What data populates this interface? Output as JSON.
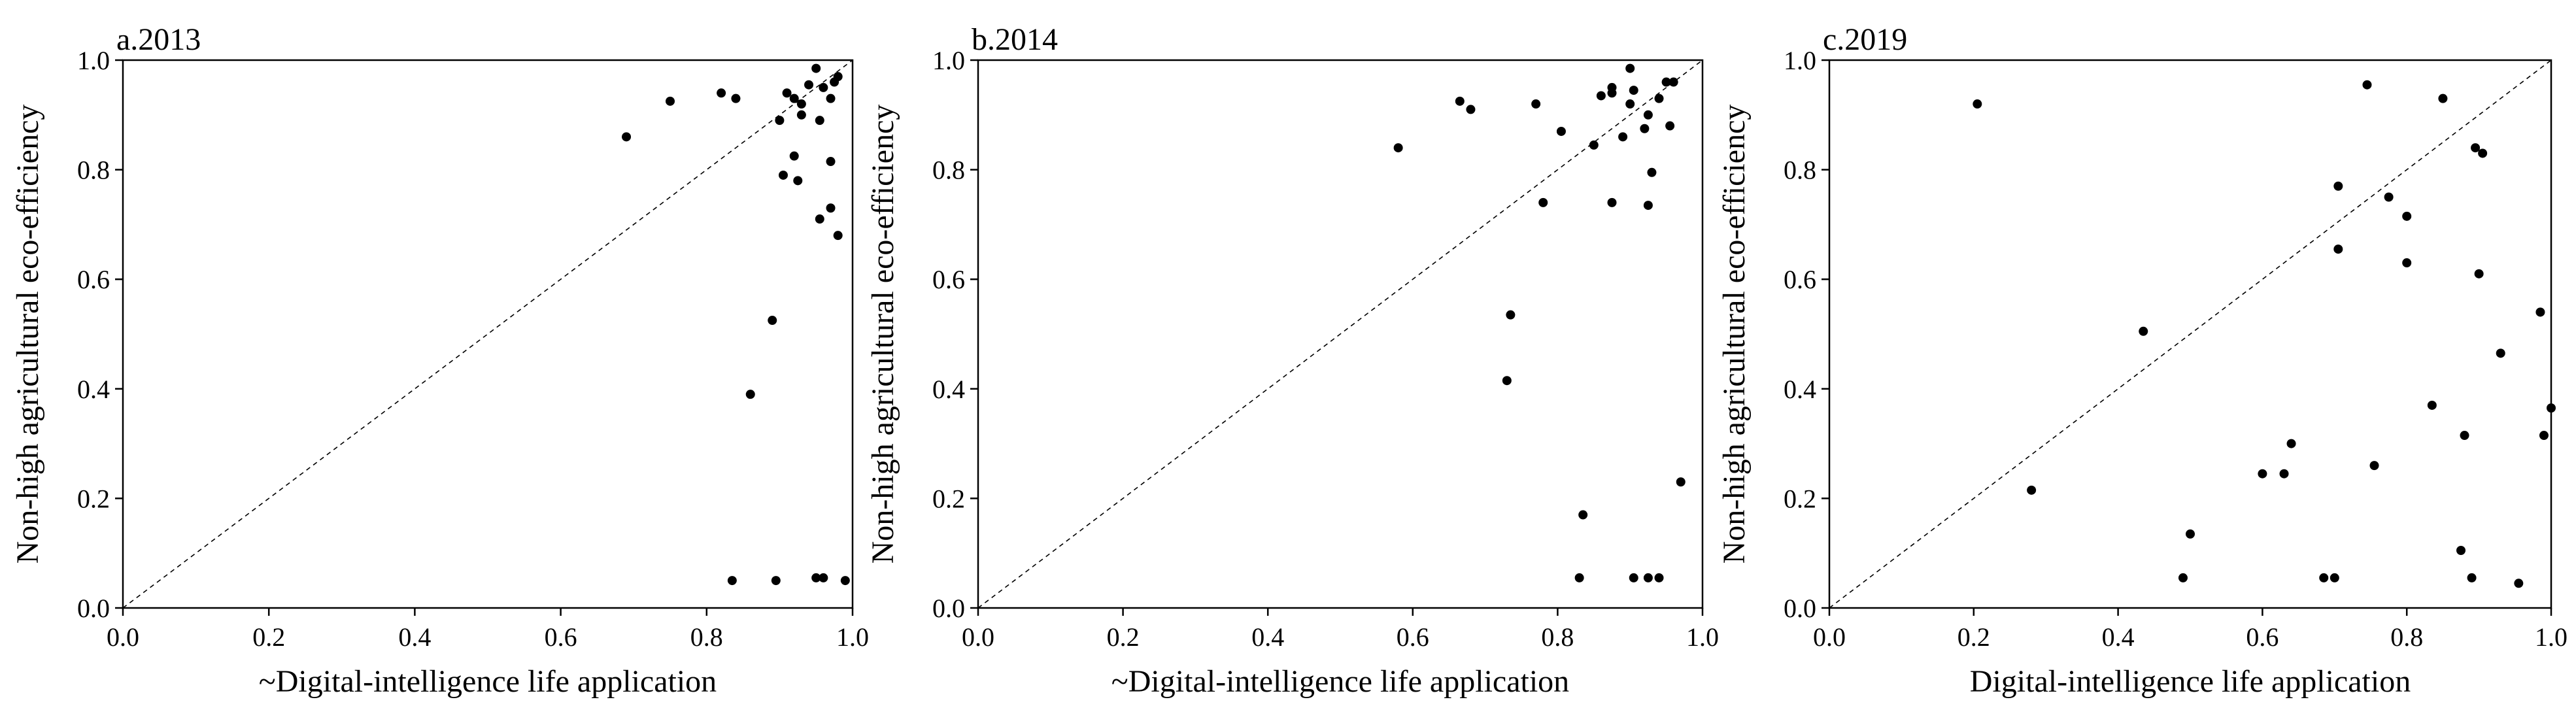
{
  "chart_data": [
    {
      "type": "scatter",
      "title": "a.2013",
      "xlabel": "~Digital-intelligence life application",
      "ylabel": "Non-high agricultural eco-efficiency",
      "xlim": [
        0,
        1.0
      ],
      "ylim": [
        0,
        1.0
      ],
      "xticks": [
        "0.0",
        "0.2",
        "0.4",
        "0.6",
        "0.8",
        "1.0"
      ],
      "yticks": [
        "0.0",
        "0.2",
        "0.4",
        "0.6",
        "0.8",
        "1.0"
      ],
      "diagonal": true,
      "points": [
        [
          0.69,
          0.86
        ],
        [
          0.75,
          0.925
        ],
        [
          0.82,
          0.94
        ],
        [
          0.84,
          0.93
        ],
        [
          0.9,
          0.89
        ],
        [
          0.91,
          0.94
        ],
        [
          0.92,
          0.93
        ],
        [
          0.93,
          0.92
        ],
        [
          0.94,
          0.955
        ],
        [
          0.95,
          0.985
        ],
        [
          0.93,
          0.9
        ],
        [
          0.955,
          0.89
        ],
        [
          0.96,
          0.95
        ],
        [
          0.97,
          0.93
        ],
        [
          0.975,
          0.96
        ],
        [
          0.98,
          0.97
        ],
        [
          0.92,
          0.825
        ],
        [
          0.905,
          0.79
        ],
        [
          0.925,
          0.78
        ],
        [
          0.97,
          0.815
        ],
        [
          0.955,
          0.71
        ],
        [
          0.97,
          0.73
        ],
        [
          0.98,
          0.68
        ],
        [
          0.89,
          0.525
        ],
        [
          0.86,
          0.39
        ],
        [
          0.835,
          0.05
        ],
        [
          0.895,
          0.05
        ],
        [
          0.95,
          0.055
        ],
        [
          0.96,
          0.055
        ],
        [
          0.99,
          0.05
        ]
      ]
    },
    {
      "type": "scatter",
      "title": "b.2014",
      "xlabel": "~Digital-intelligence life application",
      "ylabel": "Non-high agricultural eco-efficiency",
      "xlim": [
        0,
        1.0
      ],
      "ylim": [
        0,
        1.0
      ],
      "xticks": [
        "0.0",
        "0.2",
        "0.4",
        "0.6",
        "0.8",
        "1.0"
      ],
      "yticks": [
        "0.0",
        "0.2",
        "0.4",
        "0.6",
        "0.8",
        "1.0"
      ],
      "diagonal": true,
      "points": [
        [
          0.58,
          0.84
        ],
        [
          0.665,
          0.925
        ],
        [
          0.68,
          0.91
        ],
        [
          0.77,
          0.92
        ],
        [
          0.78,
          0.74
        ],
        [
          0.805,
          0.87
        ],
        [
          0.85,
          0.845
        ],
        [
          0.86,
          0.935
        ],
        [
          0.875,
          0.94
        ],
        [
          0.875,
          0.95
        ],
        [
          0.89,
          0.86
        ],
        [
          0.9,
          0.92
        ],
        [
          0.9,
          0.985
        ],
        [
          0.905,
          0.945
        ],
        [
          0.92,
          0.875
        ],
        [
          0.925,
          0.9
        ],
        [
          0.94,
          0.93
        ],
        [
          0.95,
          0.96
        ],
        [
          0.96,
          0.96
        ],
        [
          0.955,
          0.88
        ],
        [
          0.875,
          0.74
        ],
        [
          0.925,
          0.735
        ],
        [
          0.93,
          0.795
        ],
        [
          0.735,
          0.535
        ],
        [
          0.73,
          0.415
        ],
        [
          0.835,
          0.17
        ],
        [
          0.83,
          0.055
        ],
        [
          0.905,
          0.055
        ],
        [
          0.925,
          0.055
        ],
        [
          0.94,
          0.055
        ],
        [
          0.97,
          0.23
        ]
      ]
    },
    {
      "type": "scatter",
      "title": "c.2019",
      "xlabel": "Digital-intelligence life application",
      "ylabel": "Non-high agricultural eco-efficiency",
      "xlim": [
        0,
        1.0
      ],
      "ylim": [
        0,
        1.0
      ],
      "xticks": [
        "0.0",
        "0.2",
        "0.4",
        "0.6",
        "0.8",
        "1.0"
      ],
      "yticks": [
        "0.0",
        "0.2",
        "0.4",
        "0.6",
        "0.8",
        "1.0"
      ],
      "diagonal": true,
      "points": [
        [
          0.205,
          0.92
        ],
        [
          0.28,
          0.215
        ],
        [
          0.435,
          0.505
        ],
        [
          0.49,
          0.055
        ],
        [
          0.5,
          0.135
        ],
        [
          0.6,
          0.245
        ],
        [
          0.63,
          0.245
        ],
        [
          0.64,
          0.3
        ],
        [
          0.685,
          0.055
        ],
        [
          0.7,
          0.055
        ],
        [
          0.705,
          0.77
        ],
        [
          0.705,
          0.655
        ],
        [
          0.745,
          0.955
        ],
        [
          0.755,
          0.26
        ],
        [
          0.775,
          0.75
        ],
        [
          0.8,
          0.715
        ],
        [
          0.8,
          0.63
        ],
        [
          0.835,
          0.37
        ],
        [
          0.85,
          0.93
        ],
        [
          0.875,
          0.105
        ],
        [
          0.88,
          0.315
        ],
        [
          0.89,
          0.055
        ],
        [
          0.895,
          0.84
        ],
        [
          0.905,
          0.83
        ],
        [
          0.9,
          0.61
        ],
        [
          0.93,
          0.465
        ],
        [
          0.955,
          0.045
        ],
        [
          0.985,
          0.54
        ],
        [
          0.99,
          0.315
        ],
        [
          1.0,
          0.365
        ]
      ]
    }
  ]
}
